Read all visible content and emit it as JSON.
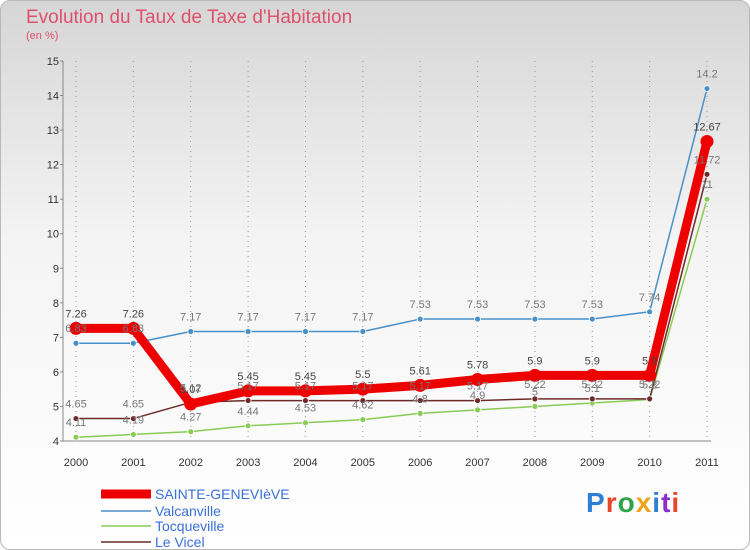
{
  "title": "Evolution du Taux de Taxe d'Habitation",
  "unit": "(en %)",
  "logo": "Proxiti",
  "colors": {
    "title": "#e0506a",
    "grid": "#9a9a9a",
    "legend_text": "#3a6fd8"
  },
  "chart_data": {
    "type": "line",
    "title": "Evolution du Taux de Taxe d'Habitation",
    "ylabel": "(en %)",
    "xlabel": "",
    "ylim": [
      4,
      15
    ],
    "yticks": [
      "4",
      "5",
      "6",
      "7",
      "8",
      "9",
      "10",
      "11",
      "12",
      "13",
      "14",
      "15"
    ],
    "x": [
      "2000",
      "2001",
      "2002",
      "2003",
      "2004",
      "2005",
      "2006",
      "2007",
      "2008",
      "2009",
      "2010",
      "2011"
    ],
    "grid": "vertical dashed",
    "legend_position": "bottom-left",
    "series": [
      {
        "name": "SAINTE-GENEVIèVE",
        "color": "#ee0000",
        "values": [
          7.26,
          7.26,
          5.07,
          5.45,
          5.45,
          5.5,
          5.61,
          5.78,
          5.9,
          5.9,
          5.9,
          12.67
        ],
        "labels": [
          "7.26",
          "7.26",
          "5.07",
          "5.45",
          "5.45",
          "5.5",
          "5.61",
          "5.78",
          "5.9",
          "5.9",
          "5.9",
          "12.67"
        ]
      },
      {
        "name": "Valcanville",
        "color": "#4a90c8",
        "values": [
          6.83,
          6.83,
          7.17,
          7.17,
          7.17,
          7.17,
          7.53,
          7.53,
          7.53,
          7.53,
          7.74,
          14.2
        ],
        "labels": [
          "6.83",
          "6.83",
          "7.17",
          "7.17",
          "7.17",
          "7.17",
          "7.53",
          "7.53",
          "7.53",
          "7.53",
          "7.74",
          "14.2"
        ]
      },
      {
        "name": "Tocqueville",
        "color": "#88cc55",
        "values": [
          4.11,
          4.19,
          4.27,
          4.44,
          4.53,
          4.62,
          4.8,
          4.9,
          5.0,
          5.1,
          5.2,
          11.0
        ],
        "labels": [
          "4.11",
          "4.19",
          "4.27",
          "4.44",
          "4.53",
          "4.62",
          "4.8",
          "4.9",
          "5",
          "5.1",
          "5.2",
          "11"
        ]
      },
      {
        "name": "Le Vicel",
        "color": "#6e2a2a",
        "values": [
          4.65,
          4.65,
          5.12,
          5.17,
          5.17,
          5.17,
          5.17,
          5.17,
          5.22,
          5.22,
          5.22,
          11.72
        ],
        "labels": [
          "4.65",
          "4.65",
          "5.12",
          "5.17",
          "5.17",
          "5.17",
          "5.17",
          "5.17",
          "5.22",
          "5.22",
          "5.22",
          "11.72"
        ]
      }
    ]
  }
}
